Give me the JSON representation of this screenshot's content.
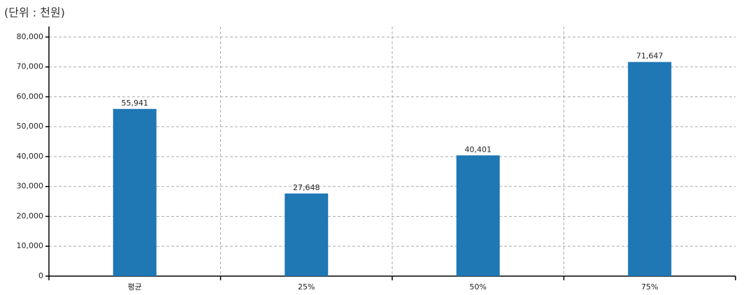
{
  "chart_data": {
    "type": "bar",
    "title": "(단위 : 천원)",
    "categories": [
      "평균",
      "25%",
      "50%",
      "75%"
    ],
    "values": [
      55941,
      27648,
      40401,
      71647
    ],
    "value_labels": [
      "55,941",
      "27,648",
      "40,401",
      "71,647"
    ],
    "color": "#1f77b4",
    "ylim": [
      0,
      83500
    ],
    "yticks": [
      0,
      {
        "value": 10000,
        "label": "10,000"
      },
      {
        "value": 20000,
        "label": "20,000"
      },
      {
        "value": 30000,
        "label": "30,000"
      },
      {
        "value": 40000,
        "label": "40,000"
      },
      {
        "value": 50000,
        "label": "50,000"
      },
      {
        "value": 60000,
        "label": "60,000"
      },
      {
        "value": 70000,
        "label": "70,000"
      },
      {
        "value": 80000,
        "label": "80,000"
      }
    ],
    "grid": true
  }
}
